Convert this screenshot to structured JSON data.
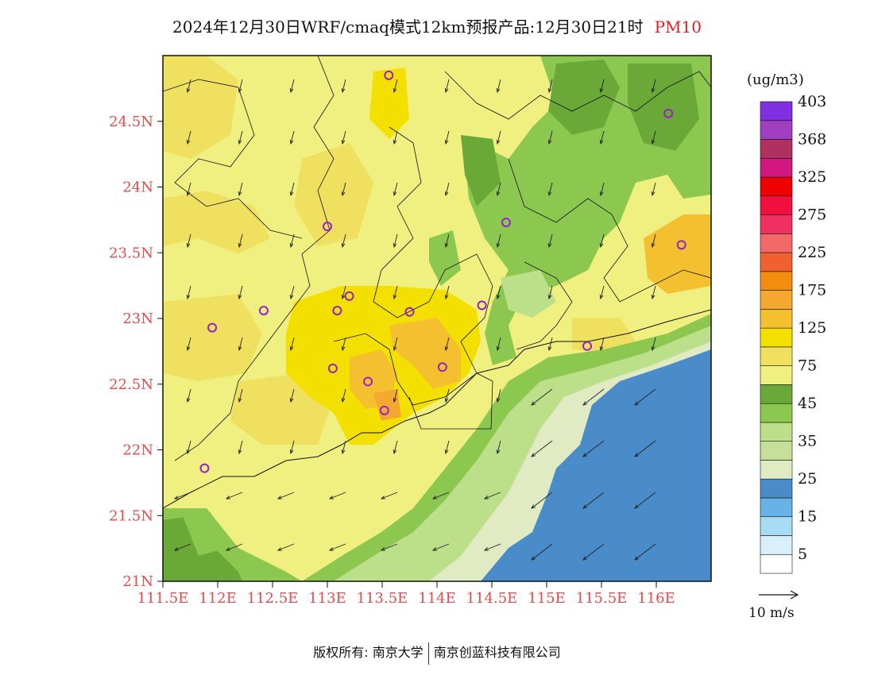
{
  "title": {
    "main": "2024年12月30日WRF/cmaq模式12km预报产品:12月30日21时",
    "variable": "PM10"
  },
  "unit": "(ug/m3)",
  "colorbar": {
    "colors": [
      "#ffffff",
      "#d9f0fb",
      "#a8dcf5",
      "#68b2e6",
      "#4a8cc9",
      "#e0ebc4",
      "#c6df9a",
      "#bce08a",
      "#8cc850",
      "#6aa838",
      "#f0f080",
      "#f0e060",
      "#f4e000",
      "#f4c030",
      "#f4a830",
      "#f48c10",
      "#f06030",
      "#f46868",
      "#f03060",
      "#f01040",
      "#f00000",
      "#d01880",
      "#b03060",
      "#a040c0",
      "#8030e0"
    ],
    "labels": [
      "5",
      "15",
      "25",
      "35",
      "45",
      "75",
      "125",
      "175",
      "225",
      "275",
      "325",
      "368",
      "403"
    ]
  },
  "axes": {
    "x_ticks": [
      "111.5E",
      "112E",
      "112.5E",
      "113E",
      "113.5E",
      "114E",
      "114.5E",
      "115E",
      "115.5E",
      "116E"
    ],
    "y_ticks": [
      "21N",
      "21.5N",
      "22N",
      "22.5N",
      "23N",
      "23.5N",
      "24N",
      "24.5N"
    ]
  },
  "wind_scale_label": "10 m/s",
  "stations": [
    {
      "lon": 113.56,
      "lat": 24.85
    },
    {
      "lon": 116.11,
      "lat": 24.56
    },
    {
      "lon": 113.0,
      "lat": 23.7
    },
    {
      "lon": 114.63,
      "lat": 23.73
    },
    {
      "lon": 116.23,
      "lat": 23.56
    },
    {
      "lon": 112.42,
      "lat": 23.06
    },
    {
      "lon": 113.09,
      "lat": 23.06
    },
    {
      "lon": 113.2,
      "lat": 23.17
    },
    {
      "lon": 113.75,
      "lat": 23.05
    },
    {
      "lon": 114.41,
      "lat": 23.1
    },
    {
      "lon": 111.95,
      "lat": 22.93
    },
    {
      "lon": 113.05,
      "lat": 22.62
    },
    {
      "lon": 113.37,
      "lat": 22.52
    },
    {
      "lon": 114.05,
      "lat": 22.63
    },
    {
      "lon": 115.37,
      "lat": 22.79
    },
    {
      "lon": 113.52,
      "lat": 22.3
    },
    {
      "lon": 111.88,
      "lat": 21.86
    }
  ],
  "footer": {
    "left": "版权所有: 南京大学",
    "right": "南京创蓝科技有限公司"
  }
}
